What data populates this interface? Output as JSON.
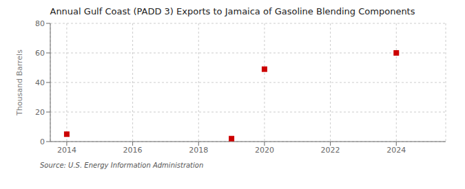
{
  "chart_data": {
    "type": "scatter",
    "title": "Annual Gulf Coast (PADD 3) Exports to Jamaica of Gasoline Blending Components",
    "ylabel": "Thousand Barrels",
    "source": "Source: U.S. Energy Information Administration",
    "x": [
      2014,
      2019,
      2020,
      2024
    ],
    "values": [
      5,
      2,
      49,
      60
    ],
    "color": "#cc0000",
    "marker": "square",
    "xlim": [
      2013.5,
      2025.5
    ],
    "ylim": [
      0,
      80
    ],
    "xticks": [
      2014,
      2016,
      2018,
      2020,
      2022,
      2024
    ],
    "yticks": [
      0,
      20,
      40,
      60,
      80
    ],
    "grid": true
  }
}
